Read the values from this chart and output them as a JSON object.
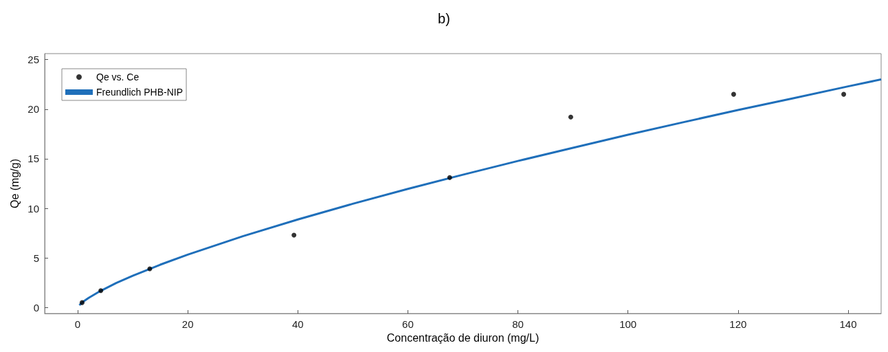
{
  "chart_data": {
    "type": "scatter",
    "title": "b)",
    "xlabel": "Concentração de diuron (mg/L)",
    "ylabel": "Qe (mg/g)",
    "xlim": [
      -6,
      146
    ],
    "xticks": [
      0,
      20,
      40,
      60,
      80,
      100,
      120,
      140
    ],
    "ylim": [
      -0.6,
      25.6
    ],
    "yticks": [
      0,
      5,
      10,
      15,
      20,
      25
    ],
    "grid": false,
    "legend": "top left",
    "series": [
      {
        "name": "Qe vs. Ce",
        "type": "scatter",
        "color": "#000000",
        "marker": "circle",
        "x": [
          0.8,
          4.2,
          13.1,
          39.3,
          67.6,
          89.6,
          119.2,
          139.2
        ],
        "values": [
          0.5,
          1.7,
          3.9,
          7.3,
          13.1,
          19.2,
          21.5,
          21.5
        ]
      },
      {
        "name": "Freundlich PHB-NIP",
        "type": "line",
        "color": "#1f6fba",
        "marker": "none",
        "line_style": "solid",
        "x": [
          0.3,
          1,
          2,
          4,
          7,
          10,
          15,
          20,
          30,
          40,
          50,
          60,
          70,
          80,
          90,
          100,
          110,
          120,
          130,
          140,
          146
        ],
        "values": [
          0.24,
          0.59,
          0.98,
          1.63,
          2.47,
          3.2,
          4.32,
          5.34,
          7.19,
          8.88,
          10.46,
          11.96,
          13.39,
          14.78,
          16.1,
          17.42,
          18.68,
          19.92,
          21.1,
          22.3,
          23.0
        ]
      }
    ]
  }
}
